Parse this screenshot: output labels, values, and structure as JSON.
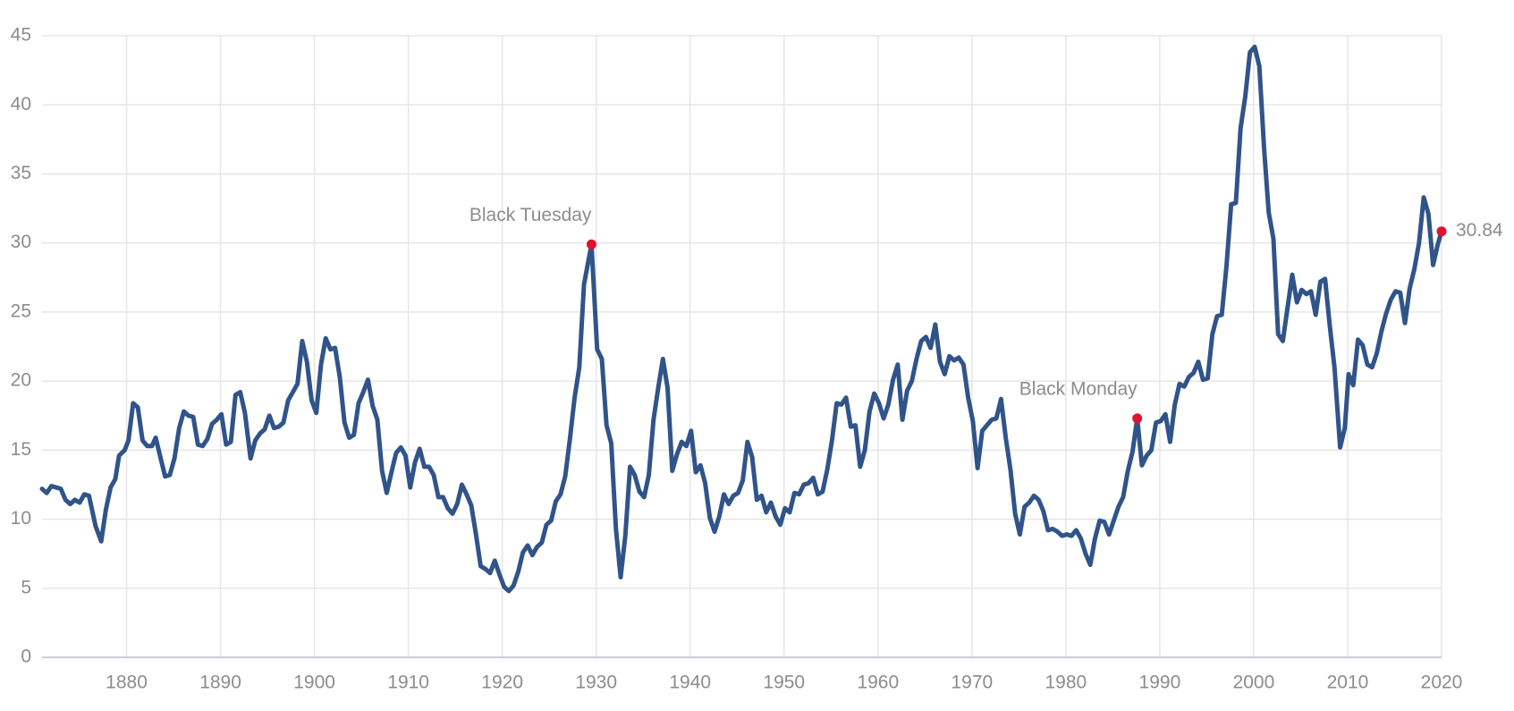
{
  "chart_data": {
    "type": "line",
    "x": [
      1871.0,
      1871.5,
      1872,
      1873,
      1873.5,
      1874,
      1874.5,
      1875,
      1875.5,
      1876,
      1876.7,
      1877.3,
      1877.8,
      1878.3,
      1878.8,
      1879.2,
      1879.8,
      1880.2,
      1880.7,
      1881.2,
      1881.7,
      1882.2,
      1882.7,
      1883.1,
      1883.6,
      1884.1,
      1884.6,
      1885.1,
      1885.6,
      1886.1,
      1886.6,
      1887.1,
      1887.6,
      1888.1,
      1888.6,
      1889.1,
      1889.6,
      1890.1,
      1890.6,
      1891.1,
      1891.6,
      1892.1,
      1892.6,
      1893.2,
      1893.7,
      1894.2,
      1894.7,
      1895.2,
      1895.7,
      1896.2,
      1896.7,
      1897.2,
      1897.7,
      1898.2,
      1898.7,
      1899.2,
      1899.7,
      1900.2,
      1900.7,
      1901.2,
      1901.7,
      1902.2,
      1902.7,
      1903.2,
      1903.7,
      1904.2,
      1904.7,
      1905.2,
      1905.7,
      1906.2,
      1906.7,
      1907.2,
      1907.7,
      1908.2,
      1908.7,
      1909.2,
      1909.7,
      1910.2,
      1910.7,
      1911.2,
      1911.7,
      1912.2,
      1912.7,
      1913.2,
      1913.7,
      1914.2,
      1914.7,
      1915.2,
      1915.7,
      1916.2,
      1916.7,
      1917.2,
      1917.7,
      1918.2,
      1918.7,
      1919.2,
      1919.7,
      1920.2,
      1920.7,
      1921.2,
      1921.7,
      1922.2,
      1922.7,
      1923.2,
      1923.7,
      1924.2,
      1924.7,
      1925.2,
      1925.7,
      1926.2,
      1926.7,
      1927.2,
      1927.7,
      1928.2,
      1928.7,
      1929.5,
      1930.1,
      1930.6,
      1931.1,
      1931.6,
      1932.1,
      1932.6,
      1933.1,
      1933.6,
      1934.1,
      1934.6,
      1935.1,
      1935.6,
      1936.1,
      1936.6,
      1937.1,
      1937.6,
      1938.1,
      1938.6,
      1939.1,
      1939.6,
      1940.1,
      1940.6,
      1941.1,
      1941.6,
      1942.1,
      1942.6,
      1943.1,
      1943.6,
      1944.1,
      1944.6,
      1945.1,
      1945.6,
      1946.1,
      1946.6,
      1947.1,
      1947.6,
      1948.1,
      1948.6,
      1949.1,
      1949.6,
      1950.1,
      1950.6,
      1951.1,
      1951.6,
      1952.1,
      1952.6,
      1953.1,
      1953.6,
      1954.1,
      1954.6,
      1955.1,
      1955.6,
      1956.1,
      1956.6,
      1957.1,
      1957.6,
      1958.1,
      1958.6,
      1959.1,
      1959.6,
      1960.1,
      1960.6,
      1961.1,
      1961.6,
      1962.1,
      1962.6,
      1963.1,
      1963.6,
      1964.1,
      1964.6,
      1965.1,
      1965.6,
      1966.1,
      1966.6,
      1967.1,
      1967.6,
      1968.1,
      1968.6,
      1969.1,
      1969.6,
      1970.1,
      1970.6,
      1971.1,
      1971.6,
      1972.1,
      1972.6,
      1973.1,
      1973.6,
      1974.1,
      1974.6,
      1975.1,
      1975.6,
      1976.1,
      1976.6,
      1977.1,
      1977.6,
      1978.1,
      1978.6,
      1979.1,
      1979.6,
      1980.1,
      1980.6,
      1981.1,
      1981.6,
      1982.1,
      1982.6,
      1983.1,
      1983.6,
      1984.1,
      1984.6,
      1985.1,
      1985.6,
      1986.1,
      1986.6,
      1987.1,
      1987.6,
      1988.1,
      1988.6,
      1989.1,
      1989.6,
      1990.1,
      1990.6,
      1991.1,
      1991.6,
      1992.1,
      1992.6,
      1993.1,
      1993.6,
      1994.1,
      1994.6,
      1995.1,
      1995.6,
      1996.1,
      1996.6,
      1997.1,
      1997.6,
      1998.1,
      1998.6,
      1999.1,
      1999.6,
      2000.1,
      2000.6,
      2001.1,
      2001.6,
      2002.1,
      2002.6,
      2003.1,
      2003.6,
      2004.1,
      2004.6,
      2005.1,
      2005.6,
      2006.1,
      2006.6,
      2007.1,
      2007.6,
      2008.1,
      2008.6,
      2009.2,
      2009.7,
      2010.1,
      2010.6,
      2011.1,
      2011.6,
      2012.1,
      2012.6,
      2013.1,
      2013.6,
      2014.1,
      2014.6,
      2015.1,
      2015.6,
      2016.1,
      2016.6,
      2017.1,
      2017.6,
      2018.1,
      2018.6,
      2019.1,
      2019.6,
      2020.0
    ],
    "values": [
      12.2,
      11.9,
      12.4,
      12.2,
      11.4,
      11.1,
      11.4,
      11.2,
      11.8,
      11.7,
      9.5,
      8.4,
      10.7,
      12.3,
      12.9,
      14.6,
      15.0,
      15.7,
      18.4,
      18.1,
      15.7,
      15.3,
      15.3,
      15.9,
      14.5,
      13.1,
      13.2,
      14.4,
      16.6,
      17.8,
      17.5,
      17.4,
      15.4,
      15.3,
      15.8,
      16.9,
      17.2,
      17.6,
      15.4,
      15.6,
      19.0,
      19.2,
      17.7,
      14.4,
      15.7,
      16.2,
      16.5,
      17.5,
      16.6,
      16.7,
      17.0,
      18.6,
      19.2,
      19.8,
      22.9,
      21.4,
      18.6,
      17.7,
      21.2,
      23.1,
      22.3,
      22.4,
      20.3,
      17.0,
      15.9,
      16.1,
      18.4,
      19.2,
      20.1,
      18.2,
      17.2,
      13.5,
      11.9,
      13.4,
      14.8,
      15.2,
      14.6,
      12.3,
      14.1,
      15.1,
      13.8,
      13.8,
      13.2,
      11.6,
      11.6,
      10.8,
      10.4,
      11.1,
      12.5,
      11.8,
      11.0,
      8.9,
      6.6,
      6.4,
      6.1,
      7.0,
      6.0,
      5.1,
      4.8,
      5.2,
      6.2,
      7.6,
      8.1,
      7.4,
      8.0,
      8.3,
      9.6,
      9.9,
      11.3,
      11.8,
      13.1,
      15.8,
      18.8,
      21.0,
      27.0,
      29.9,
      22.3,
      21.6,
      16.8,
      15.5,
      9.3,
      5.8,
      8.8,
      13.8,
      13.2,
      12.0,
      11.6,
      13.2,
      17.2,
      19.5,
      21.6,
      19.5,
      13.5,
      14.7,
      15.6,
      15.3,
      16.4,
      13.4,
      13.9,
      12.6,
      10.1,
      9.1,
      10.2,
      11.8,
      11.1,
      11.7,
      11.9,
      12.8,
      15.6,
      14.5,
      11.4,
      11.7,
      10.5,
      11.2,
      10.2,
      9.6,
      10.8,
      10.5,
      11.9,
      11.8,
      12.5,
      12.6,
      13.0,
      11.8,
      12.0,
      13.6,
      15.7,
      18.4,
      18.3,
      18.8,
      16.7,
      16.8,
      13.8,
      15.0,
      17.8,
      19.1,
      18.4,
      17.3,
      18.3,
      20.1,
      21.2,
      17.2,
      19.3,
      20.0,
      21.6,
      22.9,
      23.2,
      22.4,
      24.1,
      21.4,
      20.5,
      21.8,
      21.5,
      21.7,
      21.2,
      18.8,
      17.1,
      13.7,
      16.4,
      16.8,
      17.2,
      17.3,
      18.7,
      15.9,
      13.6,
      10.4,
      8.9,
      10.9,
      11.2,
      11.7,
      11.4,
      10.6,
      9.2,
      9.3,
      9.1,
      8.8,
      8.9,
      8.8,
      9.2,
      8.6,
      7.5,
      6.7,
      8.6,
      9.9,
      9.8,
      8.9,
      9.9,
      10.9,
      11.6,
      13.5,
      14.9,
      17.3,
      13.9,
      14.6,
      15.0,
      17.0,
      17.1,
      17.6,
      15.6,
      18.3,
      19.8,
      19.6,
      20.3,
      20.6,
      21.4,
      20.1,
      20.2,
      23.4,
      24.7,
      24.8,
      28.3,
      32.8,
      32.9,
      38.3,
      40.6,
      43.8,
      44.2,
      42.8,
      36.9,
      32.2,
      30.3,
      23.4,
      22.9,
      25.3,
      27.7,
      25.7,
      26.6,
      26.3,
      26.5,
      24.8,
      27.2,
      27.4,
      24.0,
      21.0,
      15.2,
      16.6,
      20.5,
      19.7,
      23.0,
      22.6,
      21.2,
      21.0,
      22.0,
      23.6,
      24.9,
      25.9,
      26.5,
      26.4,
      24.2,
      26.7,
      28.1,
      30.0,
      33.3,
      32.1,
      28.4,
      29.9,
      30.84
    ],
    "color": "#30548a",
    "xlim": [
      1871,
      2020
    ],
    "xticks": [
      1880,
      1890,
      1900,
      1910,
      1920,
      1930,
      1940,
      1950,
      1960,
      1970,
      1980,
      1990,
      2000,
      2010,
      2020
    ],
    "ylim": [
      0,
      45
    ],
    "yticks": [
      0,
      5,
      10,
      15,
      20,
      25,
      30,
      35,
      40,
      45
    ],
    "grid": true,
    "annotations": [
      {
        "label": "Black Tuesday",
        "x": 1929.5,
        "y": 29.9,
        "color": "#e0122f"
      },
      {
        "label": "Black Monday",
        "x": 1987.6,
        "y": 17.3,
        "color": "#e0122f"
      },
      {
        "label": "30.84",
        "x": 2020.0,
        "y": 30.84,
        "color": "#e0122f"
      }
    ]
  }
}
